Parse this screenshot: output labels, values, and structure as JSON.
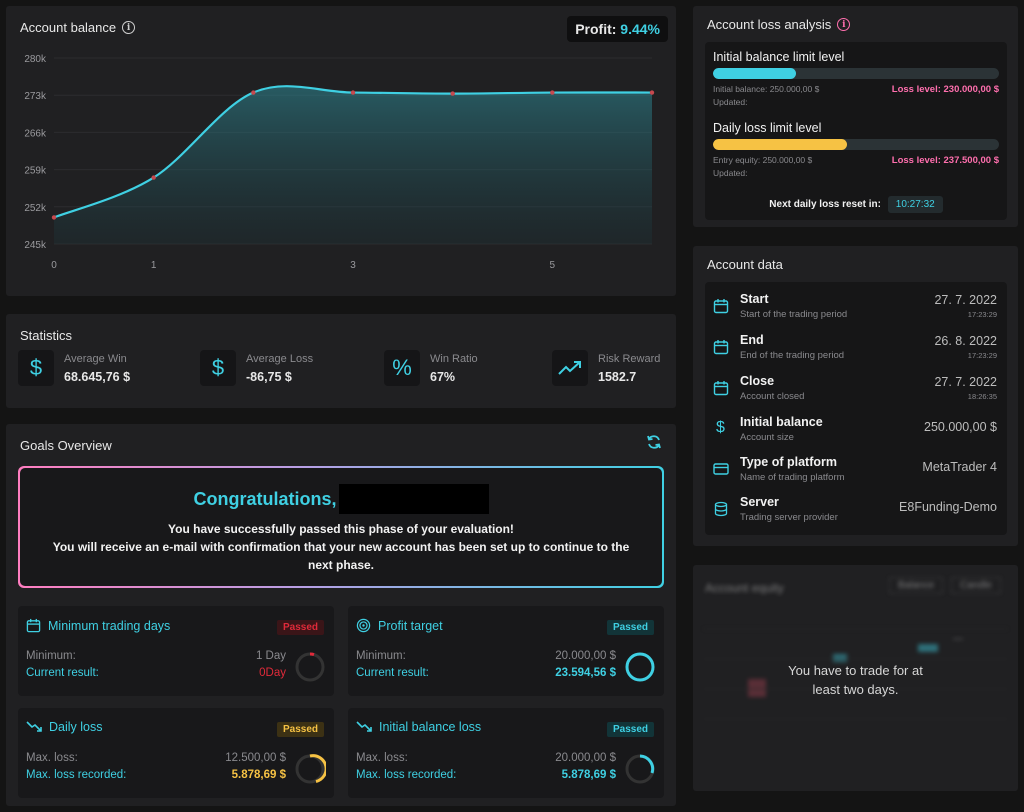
{
  "balance": {
    "title": "Account balance",
    "profit_label": "Profit:",
    "profit_value": "9.44%"
  },
  "chart_data": {
    "type": "line",
    "title": "Account balance",
    "x": [
      0,
      1,
      2,
      3,
      4,
      5,
      6
    ],
    "x_tick_labels": [
      "0",
      "1",
      "3",
      "5"
    ],
    "y_tick_labels": [
      "280k",
      "273k",
      "266k",
      "259k",
      "252k",
      "245k"
    ],
    "ylim": [
      245000,
      280000
    ],
    "values": [
      250000,
      257500,
      273500,
      273500,
      273300,
      273500,
      273500
    ],
    "line_color": "#3fd0e3",
    "grid": true
  },
  "statistics": {
    "title": "Statistics",
    "items": [
      {
        "icon": "dollar-icon",
        "label": "Average Win",
        "value": "68.645,76 $"
      },
      {
        "icon": "dollar-icon",
        "label": "Average Loss",
        "value": "-86,75 $"
      },
      {
        "icon": "percent-icon",
        "label": "Win Ratio",
        "value": "67%"
      },
      {
        "icon": "trending-up-icon",
        "label": "Risk Reward",
        "value": "1582.7"
      }
    ]
  },
  "goals": {
    "title": "Goals Overview",
    "congrats_title": "Congratulations,",
    "congrats_line1": "You have successfully passed this phase of your evaluation!",
    "congrats_line2": "You will receive an e-mail with confirmation that your new account has been set up to continue to the next phase.",
    "min_days": {
      "title": "Minimum trading days",
      "badge": "Passed",
      "label1": "Minimum:",
      "value1": "1 Day",
      "label2": "Current result:",
      "value2": "0Day"
    },
    "profit_target": {
      "title": "Profit target",
      "badge": "Passed",
      "label1": "Minimum:",
      "value1": "20.000,00 $",
      "label2": "Current result:",
      "value2": "23.594,56 $"
    },
    "daily_loss": {
      "title": "Daily loss",
      "badge": "Passed",
      "label1": "Max. loss:",
      "value1": "12.500,00 $",
      "label2": "Max. loss recorded:",
      "value2": "5.878,69 $"
    },
    "initial_loss": {
      "title": "Initial balance loss",
      "badge": "Passed",
      "label1": "Max. loss:",
      "value1": "20.000,00 $",
      "label2": "Max. loss recorded:",
      "value2": "5.878,69 $"
    }
  },
  "loss_analysis": {
    "title": "Account loss analysis",
    "initial": {
      "title": "Initial balance limit level",
      "fill": 0.29,
      "sub1": "Initial balance: 250.000,00 $",
      "sub2": "Updated:",
      "loss_level": "Loss level: 230.000,00 $"
    },
    "daily": {
      "title": "Daily loss limit level",
      "fill": 0.47,
      "sub1": "Entry equity: 250.000,00 $",
      "sub2": "Updated:",
      "loss_level": "Loss level: 237.500,00 $"
    },
    "reset_label": "Next daily loss reset in:",
    "reset_timer": "10:27:32"
  },
  "account_data": {
    "title": "Account data",
    "rows": [
      {
        "icon": "calendar-icon",
        "label": "Start",
        "sub": "Start of the trading period",
        "value": "27. 7. 2022",
        "time": "17:23:29"
      },
      {
        "icon": "calendar-icon",
        "label": "End",
        "sub": "End of the trading period",
        "value": "26. 8. 2022",
        "time": "17:23:29"
      },
      {
        "icon": "calendar-icon",
        "label": "Close",
        "sub": "Account closed",
        "value": "27. 7. 2022",
        "time": "18:26:35"
      },
      {
        "icon": "dollar-icon",
        "label": "Initial balance",
        "sub": "Account size",
        "value": "250.000,00 $"
      },
      {
        "icon": "credit-card-icon",
        "label": "Type of platform",
        "sub": "Name of trading platform",
        "value": "MetaTrader 4"
      },
      {
        "icon": "database-icon",
        "label": "Server",
        "sub": "Trading server provider",
        "value": "E8Funding-Demo"
      }
    ]
  },
  "equity": {
    "title": "Account equity",
    "tab1": "Balance",
    "tab2": "Candle",
    "message_line1": "You have to trade for at",
    "message_line2": "least two days."
  }
}
